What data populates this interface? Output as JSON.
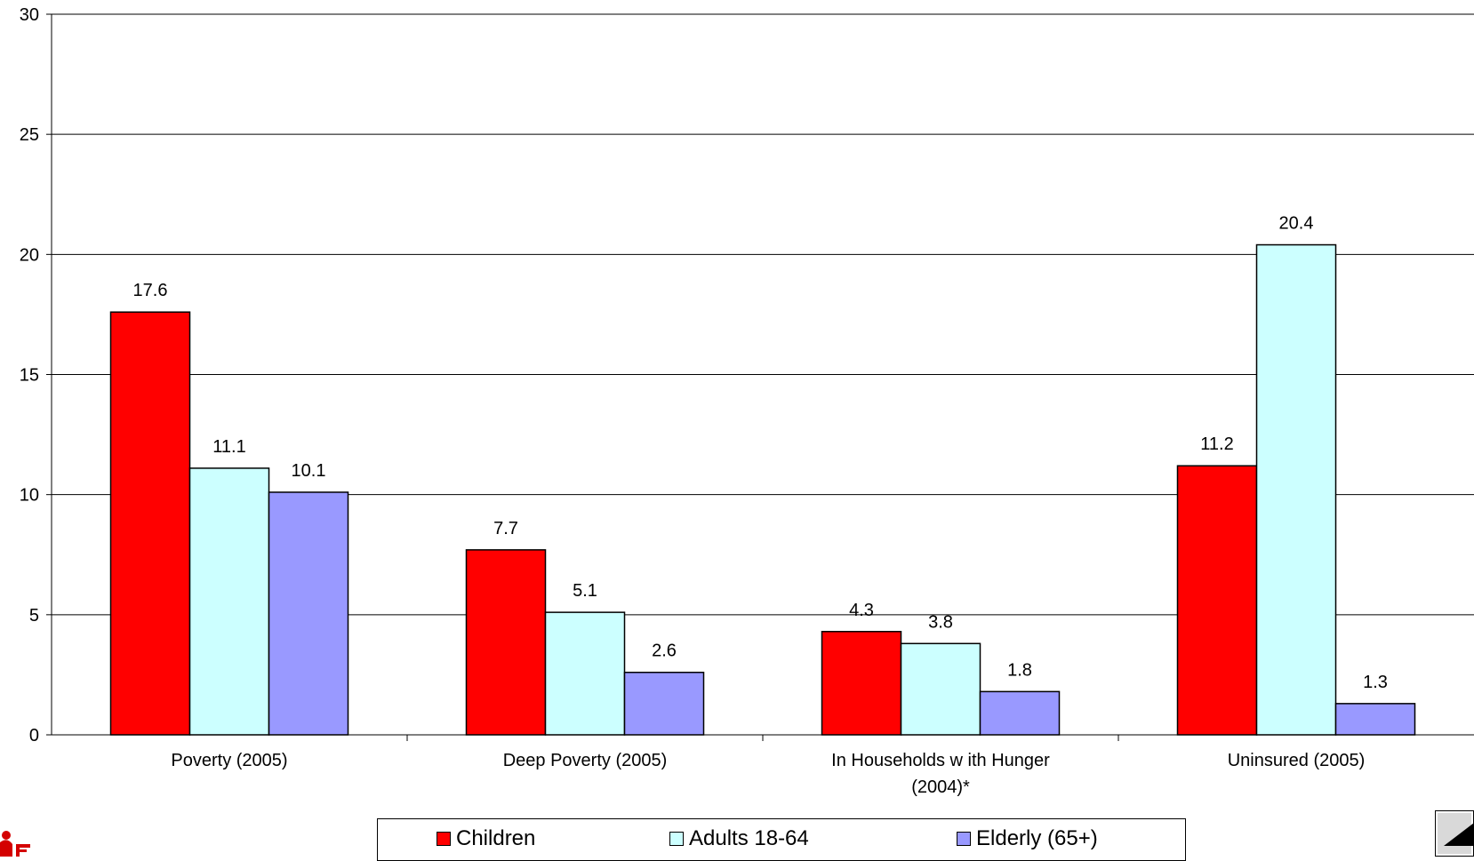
{
  "chart_data": {
    "type": "bar",
    "title": "",
    "xlabel": "",
    "ylabel": "",
    "ylim": [
      0,
      30
    ],
    "yticks": [
      0,
      5,
      10,
      15,
      20,
      25,
      30
    ],
    "grid": true,
    "legend_position": "bottom",
    "categories": [
      [
        "Poverty (2005)"
      ],
      [
        "Deep Poverty (2005)"
      ],
      [
        "In Households w ith Hunger",
        "(2004)*"
      ],
      [
        "Uninsured (2005)"
      ]
    ],
    "series": [
      {
        "name": "Children",
        "color": "#ff0000",
        "values": [
          17.6,
          7.7,
          4.3,
          11.2
        ],
        "labels": [
          "17.6",
          "7.7",
          "4.3",
          "11.2"
        ]
      },
      {
        "name": "Adults 18-64",
        "color": "#ccffff",
        "values": [
          11.1,
          5.1,
          3.8,
          20.4
        ],
        "labels": [
          "11.1",
          "5.1",
          "3.8",
          "20.4"
        ]
      },
      {
        "name": "Elderly (65+)",
        "color": "#9999ff",
        "values": [
          10.1,
          2.6,
          1.8,
          1.3
        ],
        "labels": [
          "10.1",
          "2.6",
          "1.8",
          "1.3"
        ]
      }
    ]
  },
  "logos": {
    "left": "organization-logo-icon",
    "right": "publisher-logo-icon"
  }
}
